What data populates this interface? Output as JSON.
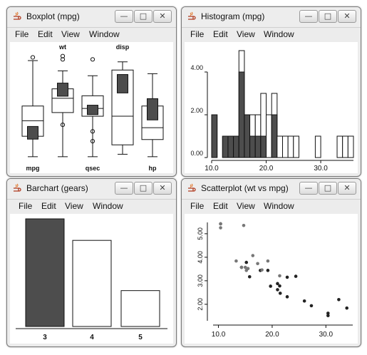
{
  "colors": {
    "dark": "#4d4d4d",
    "light": "#ffffff",
    "stroke": "#111111",
    "lightpoint": "#777777"
  },
  "menu": {
    "file": "File",
    "edit": "Edit",
    "view": "View",
    "window": "Window"
  },
  "windows": {
    "boxplot": {
      "title": "Boxplot (mpg)"
    },
    "histogram": {
      "title": "Histogram (mpg)"
    },
    "barchart": {
      "title": "Barchart (gears)"
    },
    "scatter": {
      "title": "Scatterplot (wt vs mpg)"
    }
  },
  "chart_data": [
    {
      "id": "boxplot",
      "type": "box",
      "boxes": [
        {
          "label": "mpg",
          "top_label": "",
          "min": 10.4,
          "q1": 15.4,
          "median": 19.2,
          "q3": 22.8,
          "max": 33.9,
          "outliers": [
            34.7
          ],
          "highlight": {
            "q1": 14.7,
            "q3": 17.8
          }
        },
        {
          "label": "",
          "top_label": "wt",
          "min": 10.4,
          "q1": 21.2,
          "median": 24.7,
          "q3": 27.0,
          "max": 31.4,
          "outliers": [
            34.2,
            35.0,
            18.2
          ],
          "highlight": {
            "q1": 25.2,
            "q3": 28.4
          }
        },
        {
          "label": "qsec",
          "top_label": "",
          "min": 10.4,
          "q1": 20.3,
          "median": 22.2,
          "q3": 25.3,
          "max": 30.2,
          "outliers": [
            16.6,
            14.2,
            34.2
          ],
          "highlight": {
            "q1": 20.7,
            "q3": 23.0
          }
        },
        {
          "label": "",
          "top_label": "disp",
          "min": 11.0,
          "q1": 13.3,
          "median": 20.3,
          "q3": 31.6,
          "max": 33.6,
          "outliers": [],
          "highlight": {
            "q1": 26.0,
            "q3": 30.5
          }
        },
        {
          "label": "hp",
          "top_label": "",
          "min": 10.4,
          "q1": 14.6,
          "median": 17.5,
          "q3": 22.8,
          "max": 30.7,
          "outliers": [],
          "highlight": {
            "q1": 19.4,
            "q3": 24.6
          }
        }
      ],
      "ylim": [
        9.5,
        36
      ]
    },
    {
      "id": "histogram",
      "type": "bar",
      "bins_start": 10.0,
      "bin_width": 1.0,
      "totals": [
        2,
        0,
        1,
        1,
        1,
        5,
        2,
        2,
        2,
        3,
        2,
        3,
        1,
        1,
        1,
        1,
        0,
        0,
        0,
        1,
        0,
        0,
        0,
        1,
        1,
        1
      ],
      "highlighted": [
        2,
        0,
        1,
        1,
        1,
        4,
        2,
        1,
        1,
        1,
        0,
        2,
        0,
        0,
        0,
        0,
        0,
        0,
        0,
        0,
        0,
        0,
        0,
        0,
        0,
        0
      ],
      "xticks": [
        "10.0",
        "20.0",
        "30.0"
      ],
      "yticks": [
        "0.00",
        "2.00",
        "4.00"
      ],
      "xlim": [
        10,
        36
      ],
      "ylim": [
        0,
        5
      ]
    },
    {
      "id": "barchart",
      "type": "bar",
      "categories": [
        "3",
        "4",
        "5"
      ],
      "values": [
        15,
        12,
        5
      ],
      "highlighted": [
        15,
        0,
        0
      ],
      "ylim": [
        0,
        15
      ]
    },
    {
      "id": "scatter",
      "type": "scatter",
      "highlighted_points": [
        [
          10.4,
          5.25
        ],
        [
          10.4,
          5.42
        ],
        [
          14.7,
          5.35
        ],
        [
          13.3,
          3.84
        ],
        [
          14.3,
          3.57
        ],
        [
          15.0,
          3.57
        ],
        [
          15.2,
          3.44
        ],
        [
          15.5,
          3.52
        ],
        [
          16.4,
          4.07
        ],
        [
          17.3,
          3.73
        ],
        [
          18.1,
          3.46
        ],
        [
          19.2,
          3.84
        ],
        [
          21.4,
          3.21
        ],
        [
          10.4,
          5.42
        ]
      ],
      "points": [
        [
          14.3,
          3.57
        ],
        [
          15.2,
          3.78
        ],
        [
          15.8,
          3.17
        ],
        [
          17.8,
          3.44
        ],
        [
          19.2,
          3.44
        ],
        [
          19.7,
          2.77
        ],
        [
          21.0,
          2.62
        ],
        [
          21.0,
          2.88
        ],
        [
          21.4,
          2.78
        ],
        [
          21.5,
          2.47
        ],
        [
          22.8,
          3.15
        ],
        [
          22.8,
          2.32
        ],
        [
          24.4,
          3.19
        ],
        [
          26.0,
          2.14
        ],
        [
          27.3,
          1.94
        ],
        [
          30.4,
          1.62
        ],
        [
          30.4,
          1.52
        ],
        [
          32.4,
          2.2
        ],
        [
          33.9,
          1.84
        ]
      ],
      "xticks": [
        "10.0",
        "20.0",
        "30.0"
      ],
      "yticks": [
        "2.00",
        "3.00",
        "4.00",
        "5.00"
      ],
      "xlim": [
        9,
        35
      ],
      "ylim": [
        1.3,
        5.6
      ]
    }
  ]
}
